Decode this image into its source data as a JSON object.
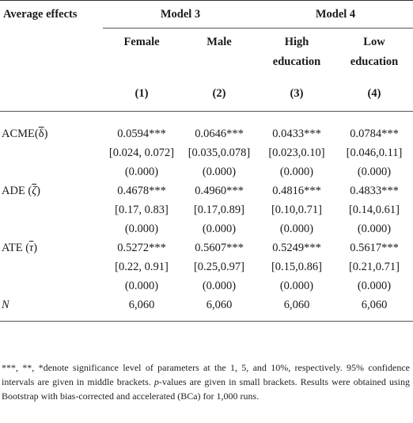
{
  "header": {
    "label": "Average effects",
    "model3": "Model 3",
    "model4": "Model 4",
    "cols": [
      "Female",
      "Male",
      "High",
      "Low"
    ],
    "cols2": [
      "",
      "",
      "education",
      "education"
    ],
    "nums": [
      "(1)",
      "(2)",
      "(3)",
      "(4)"
    ]
  },
  "rows": {
    "acme": {
      "label_pre": "ACME(",
      "label_sym": "δ",
      "label_post": ")",
      "est": [
        "0.0594***",
        "0.0646***",
        "0.0433***",
        "0.0784***"
      ],
      "ci": [
        "[0.024, 0.072]",
        "[0.035,0.078]",
        "[0.023,0.10]",
        "[0.046,0.11]"
      ],
      "p": [
        "(0.000)",
        "(0.000)",
        "(0.000)",
        "(0.000)"
      ]
    },
    "ade": {
      "label_pre": "ADE (",
      "label_sym": "ζ",
      "label_post": ")",
      "est": [
        "0.4678***",
        "0.4960***",
        "0.4816***",
        "0.4833***"
      ],
      "ci": [
        "[0.17, 0.83]",
        "[0.17,0.89]",
        "[0.10,0.71]",
        "[0.14,0.61]"
      ],
      "p": [
        "(0.000)",
        "(0.000)",
        "(0.000)",
        "(0.000)"
      ]
    },
    "ate": {
      "label_pre": "ATE (",
      "label_sym": "τ",
      "label_post": ")",
      "est": [
        "0.5272***",
        "0.5607***",
        "0.5249***",
        "0.5617***"
      ],
      "ci": [
        "[0.22, 0.91]",
        "[0.25,0.97]",
        "[0.15,0.86]",
        "[0.21,0.71]"
      ],
      "p": [
        "(0.000)",
        "(0.000)",
        "(0.000)",
        "(0.000)"
      ]
    },
    "n": {
      "label": "N",
      "values": [
        "6,060",
        "6,060",
        "6,060",
        "6,060"
      ]
    }
  },
  "note": {
    "part1": "***, **, *denote significance level of parameters at the 1, 5, and 10%, respectively. 95% confidence intervals are given in middle brackets. ",
    "p_italic": "p",
    "part2": "-values are given in small brackets. Results were obtained using Bootstrap with bias-corrected and accelerated (BCa) for 1,000 runs."
  }
}
